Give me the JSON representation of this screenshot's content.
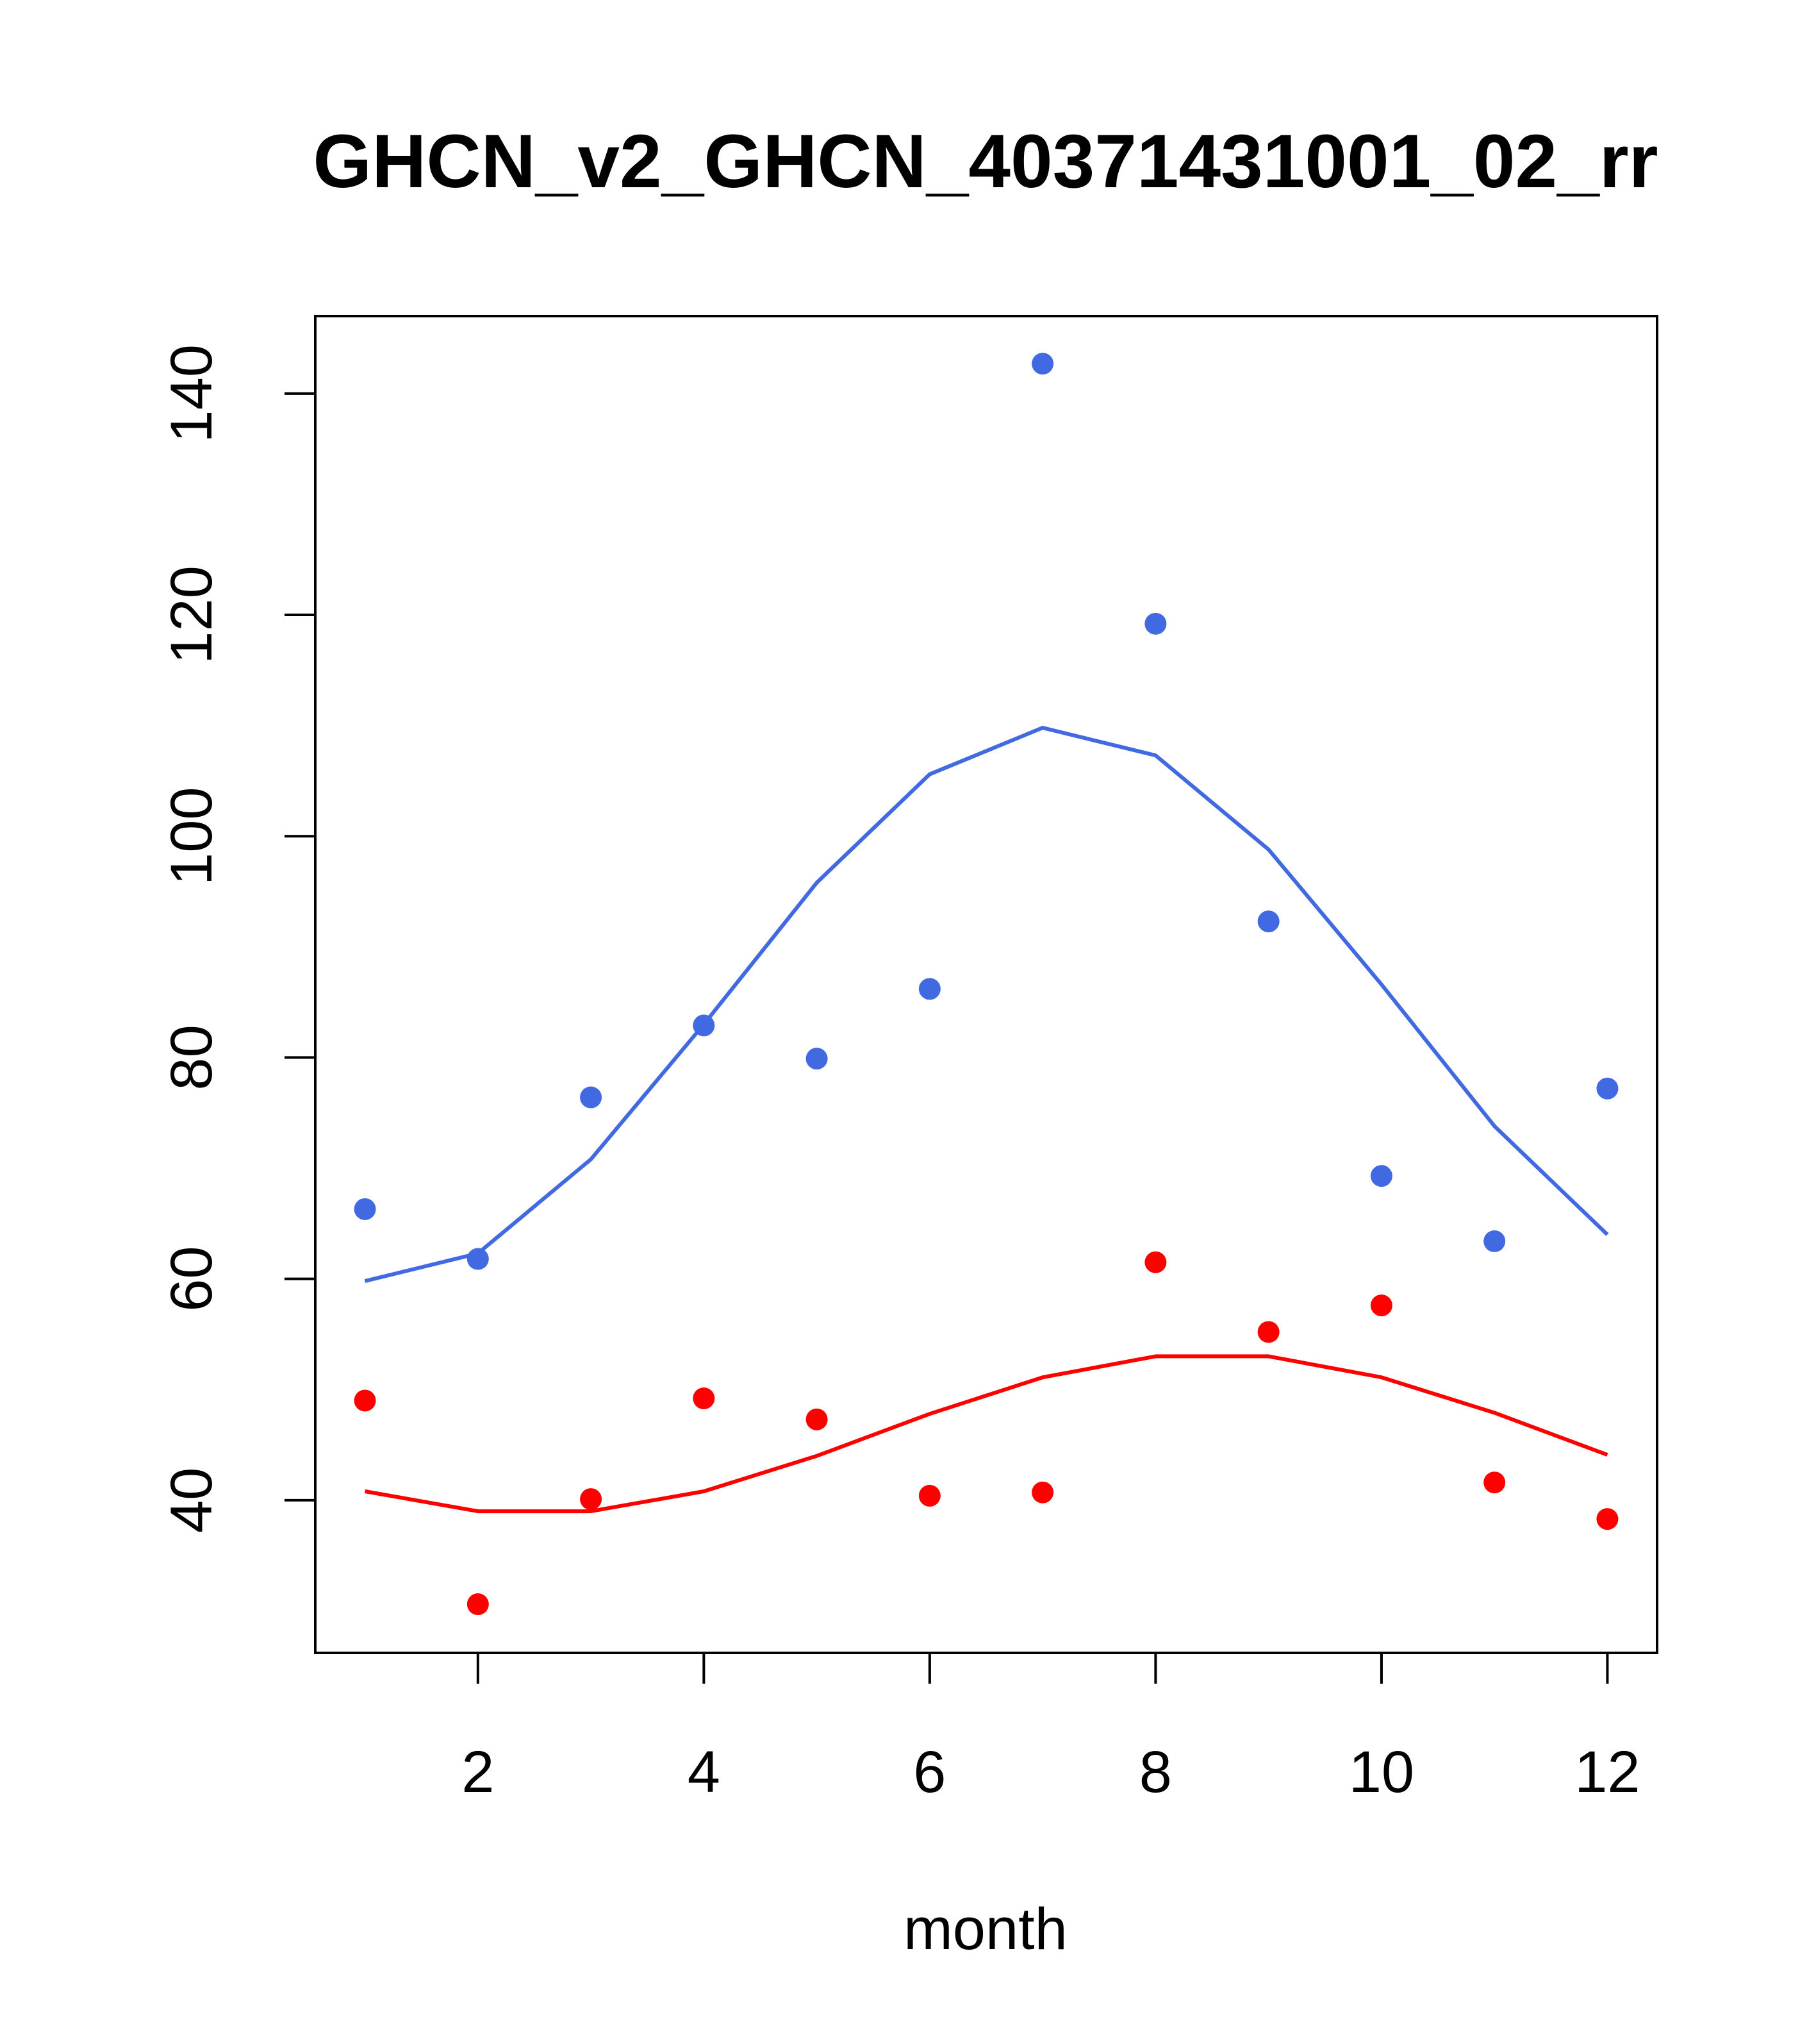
{
  "chart_data": {
    "type": "scatter",
    "title": "GHCN_v2_GHCN_40371431001_02_rr",
    "xlabel": "month",
    "ylabel": "",
    "xlim": [
      0.56,
      12.44
    ],
    "ylim": [
      26.2,
      147.0
    ],
    "x_ticks": [
      2,
      4,
      6,
      8,
      10,
      12
    ],
    "y_ticks": [
      40,
      60,
      80,
      100,
      120,
      140
    ],
    "x": [
      1,
      2,
      3,
      4,
      5,
      6,
      7,
      8,
      9,
      10,
      11,
      12
    ],
    "series": [
      {
        "name": "blue points",
        "kind": "points",
        "color": "#4169e1",
        "values": [
          66.3,
          61.8,
          76.4,
          82.9,
          79.9,
          86.2,
          142.7,
          119.2,
          92.3,
          69.3,
          63.4,
          77.2
        ]
      },
      {
        "name": "blue line",
        "kind": "line",
        "color": "#4169e1",
        "values": [
          59.8,
          62.3,
          70.8,
          83.0,
          95.8,
          105.6,
          109.8,
          107.3,
          98.8,
          86.6,
          73.8,
          64.0
        ]
      },
      {
        "name": "red points",
        "kind": "points",
        "color": "#ff0000",
        "values": [
          49.0,
          30.6,
          40.1,
          49.2,
          47.3,
          40.4,
          40.7,
          61.5,
          55.2,
          57.6,
          41.6,
          38.3
        ]
      },
      {
        "name": "red line",
        "kind": "line",
        "color": "#ff0000",
        "values": [
          40.8,
          39.0,
          39.0,
          40.8,
          44.0,
          47.8,
          51.1,
          53.0,
          53.0,
          51.1,
          47.9,
          44.1
        ]
      }
    ]
  }
}
